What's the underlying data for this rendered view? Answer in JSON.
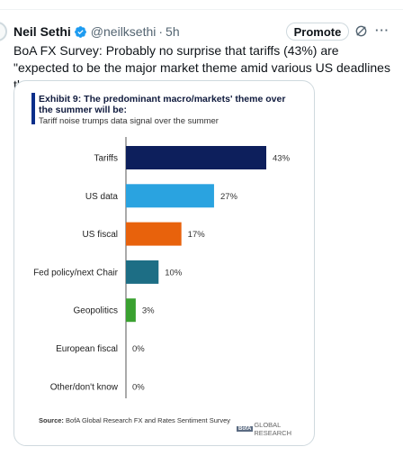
{
  "tweet": {
    "author_name": "Neil Sethi",
    "handle": "@neilksethi",
    "separator": "·",
    "time": "5h",
    "promote_label": "Promote",
    "more_label": "···",
    "text": "BoA FX Survey: Probably no surprise that tariffs (43%) are \"expected to be the major market theme amid various US deadlines through the summer\".",
    "icons": [
      "verified-badge-icon",
      "grok-icon",
      "more-icon"
    ]
  },
  "exhibit": {
    "title": "Exhibit 9: The predominant macro/markets' theme over the summer will be:",
    "subtitle": "Tariff noise trumps data signal over the summer",
    "source_prefix": "Source:",
    "source_text": "BofA Global Research FX and Rates Sentiment Survey",
    "brand_box": "BofA",
    "brand_text": "GLOBAL RESEARCH"
  },
  "chart_data": {
    "type": "bar",
    "orientation": "horizontal",
    "categories": [
      "Tariffs",
      "US data",
      "US fiscal",
      "Fed policy/next Chair",
      "Geopolitics",
      "European fiscal",
      "Other/don't know"
    ],
    "values": [
      43,
      27,
      17,
      10,
      3,
      0,
      0
    ],
    "value_labels": [
      "43%",
      "27%",
      "17%",
      "10%",
      "3%",
      "0%",
      "0%"
    ],
    "colors": [
      "#0d1f5c",
      "#2aa3e0",
      "#e8620c",
      "#1d6e85",
      "#3aa130",
      "#888888",
      "#888888"
    ],
    "unit": "%",
    "xlim": [
      0,
      50
    ],
    "grid": false,
    "legend": "none"
  }
}
